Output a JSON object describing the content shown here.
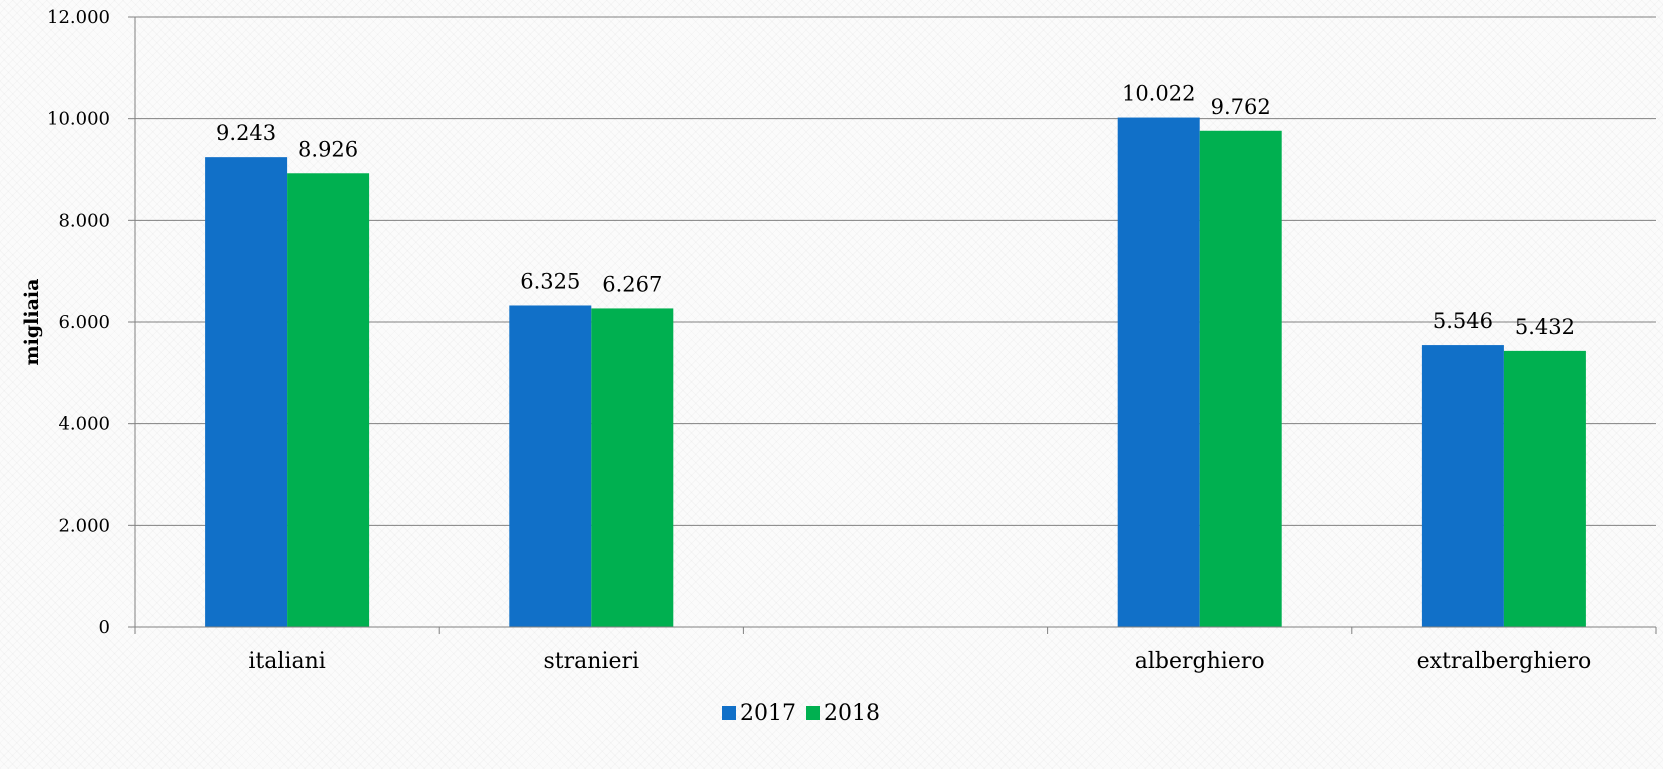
{
  "chart_data": {
    "type": "bar",
    "categories": [
      "italiani",
      "stranieri",
      "",
      "alberghiero",
      "extralberghiero"
    ],
    "series": [
      {
        "name": "2017",
        "color": "#1170c8",
        "values": [
          9243,
          6325,
          null,
          10022,
          5546
        ],
        "labels": [
          "9.243",
          "6.325",
          "",
          "10.022",
          "5.546"
        ]
      },
      {
        "name": "2018",
        "color": "#00b050",
        "values": [
          8926,
          6267,
          null,
          9762,
          5432
        ],
        "labels": [
          "8.926",
          "6.267",
          "",
          "9.762",
          "5.432"
        ]
      }
    ],
    "ylabel": "migliaia",
    "xlabel": "",
    "ylim": [
      0,
      12000
    ],
    "yticks": [
      0,
      2000,
      4000,
      6000,
      8000,
      10000,
      12000
    ],
    "ytick_labels": [
      "0",
      "2.000",
      "4.000",
      "6.000",
      "8.000",
      "10.000",
      "12.000"
    ],
    "grid": "horizontal",
    "legend_position": "bottom-center"
  }
}
